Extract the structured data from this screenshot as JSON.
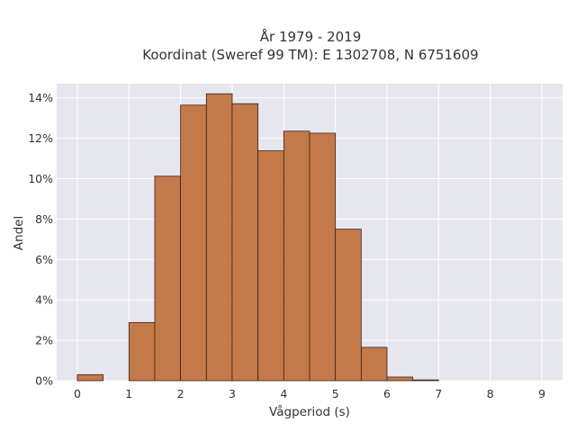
{
  "chart_data": {
    "type": "bar",
    "title_line1": "År 1979 - 2019",
    "title_line2": "Koordinat (Sweref 99 TM): E 1302708, N 6751609",
    "xlabel": "Vågperiod (s)",
    "ylabel": "Andel",
    "bin_width": 0.5,
    "bins": [
      {
        "x0": 0.0,
        "value": 0.003
      },
      {
        "x0": 0.5,
        "value": 0.0
      },
      {
        "x0": 1.0,
        "value": 0.0288
      },
      {
        "x0": 1.5,
        "value": 0.1012
      },
      {
        "x0": 2.0,
        "value": 0.1364
      },
      {
        "x0": 2.5,
        "value": 0.142
      },
      {
        "x0": 3.0,
        "value": 0.1371
      },
      {
        "x0": 3.5,
        "value": 0.1138
      },
      {
        "x0": 4.0,
        "value": 0.1235
      },
      {
        "x0": 4.5,
        "value": 0.1225
      },
      {
        "x0": 5.0,
        "value": 0.075
      },
      {
        "x0": 5.5,
        "value": 0.0165
      },
      {
        "x0": 6.0,
        "value": 0.0018
      },
      {
        "x0": 6.5,
        "value": 0.0004
      }
    ],
    "xlim": [
      -0.4,
      9.4
    ],
    "ylim": [
      0,
      0.147
    ],
    "xticks": [
      0,
      1,
      2,
      3,
      4,
      5,
      6,
      7,
      8,
      9
    ],
    "yticks": [
      0,
      0.02,
      0.04,
      0.06,
      0.08,
      0.1,
      0.12,
      0.14
    ],
    "ytick_labels": [
      "0%",
      "2%",
      "4%",
      "6%",
      "8%",
      "10%",
      "12%",
      "14%"
    ],
    "grid": true,
    "colors": {
      "bar_fill": "#c0703c",
      "bar_edge": "#3a2418",
      "plot_background": "#e6e6ef",
      "grid": "#ffffff"
    }
  }
}
